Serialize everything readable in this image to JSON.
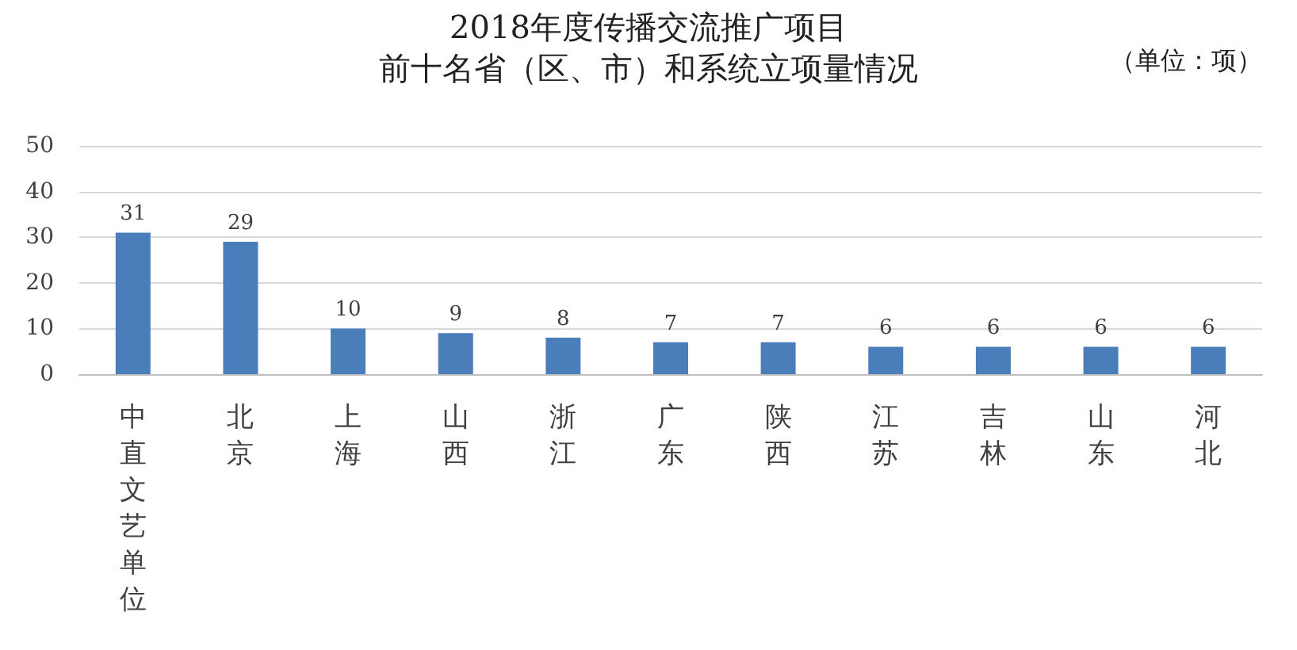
{
  "chart_data": {
    "type": "bar",
    "title": "2018年度传播交流推广项目",
    "subtitle": "前十名省（区、市）和系统立项量情况",
    "annotations": [
      "（单位：项）"
    ],
    "categories": [
      "中直文艺单位",
      "北京",
      "上海",
      "山西",
      "浙江",
      "广东",
      "陕西",
      "江苏",
      "吉林",
      "山东",
      "河北"
    ],
    "values": [
      31,
      29,
      10,
      9,
      8,
      7,
      7,
      6,
      6,
      6,
      6
    ],
    "color": "#4a7ebb",
    "ylim": [
      0,
      50
    ],
    "yticks": [
      0,
      10,
      20,
      30,
      40,
      50
    ],
    "grid": "y",
    "data_labels": true
  }
}
